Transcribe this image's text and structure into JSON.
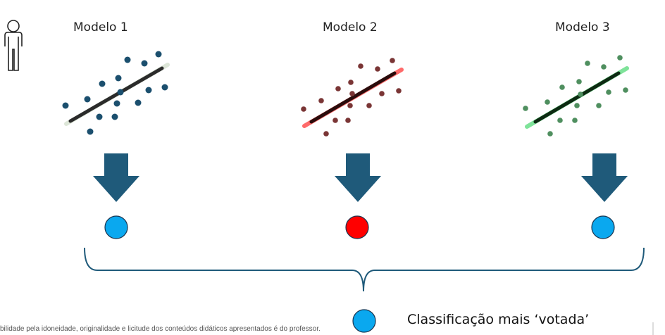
{
  "colors": {
    "model1_points": "#1b4f6e",
    "model2_points": "#7a3535",
    "model3_points": "#4f8f5f",
    "arrow": "#1f5a7a",
    "vote_blue": "#0aa8ef",
    "vote_red": "#ff0000",
    "brace": "#1f5a7a"
  },
  "icons": {
    "person": "person-outline-icon"
  },
  "models": [
    {
      "title": "Modelo 1",
      "vote_color": "blue"
    },
    {
      "title": "Modelo 2",
      "vote_color": "red"
    },
    {
      "title": "Modelo 3",
      "vote_color": "blue"
    }
  ],
  "result": {
    "label": "Classificação mais ‘votada’",
    "vote_color": "blue"
  },
  "footer": {
    "text": "bilidade pela idoneidade, originalidade e licitude dos conteúdos didáticos apresentados é do professor."
  }
}
